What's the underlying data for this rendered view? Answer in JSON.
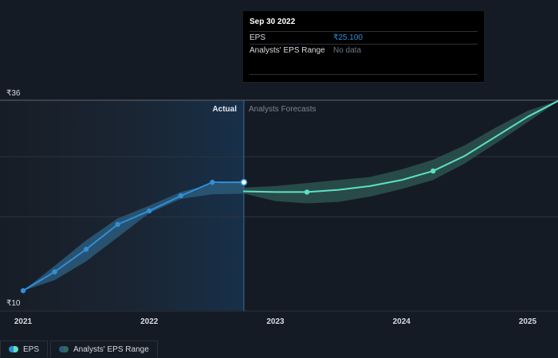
{
  "tooltip": {
    "date": "Sep 30 2022",
    "eps_label": "EPS",
    "eps_value": "₹25.100",
    "range_label": "Analysts' EPS Range",
    "range_value": "No data"
  },
  "legend": {
    "eps": "EPS",
    "range": "Analysts' EPS Range"
  },
  "colors": {
    "background": "#151b24",
    "actual_line": "#2f8fd8",
    "forecast_line": "#5ce1c6",
    "actual_band": "#2b5a7a",
    "forecast_band": "#2f5c55"
  },
  "chart_data": {
    "type": "line",
    "ylim": [
      10,
      36
    ],
    "xlim": [
      2021,
      2025.25
    ],
    "y_tick_labels": [
      {
        "value": 36,
        "label": "₹36"
      },
      {
        "value": 10,
        "label": "₹10"
      }
    ],
    "x_tick_labels": [
      {
        "value": 2021,
        "label": "2021"
      },
      {
        "value": 2022,
        "label": "2022"
      },
      {
        "value": 2023,
        "label": "2023"
      },
      {
        "value": 2024,
        "label": "2024"
      },
      {
        "value": 2025,
        "label": "2025"
      }
    ],
    "gridlines_y": [
      36,
      28.5,
      20.5
    ],
    "divider_x": 2022.75,
    "region_labels": {
      "actual": "Actual",
      "forecast": "Analysts Forecasts"
    },
    "series": [
      {
        "name": "EPS",
        "kind": "actual",
        "points": [
          {
            "x": 2021.0,
            "y": 10.7
          },
          {
            "x": 2021.25,
            "y": 13.2
          },
          {
            "x": 2021.5,
            "y": 16.2
          },
          {
            "x": 2021.75,
            "y": 19.5
          },
          {
            "x": 2022.0,
            "y": 21.3
          },
          {
            "x": 2022.25,
            "y": 23.3
          },
          {
            "x": 2022.5,
            "y": 25.1
          },
          {
            "x": 2022.75,
            "y": 25.1
          }
        ],
        "marker_indices": [
          0,
          1,
          2,
          3,
          4,
          5,
          6
        ],
        "highlight_index": 7
      },
      {
        "name": "EPS",
        "kind": "forecast",
        "points": [
          {
            "x": 2022.75,
            "y": 23.9
          },
          {
            "x": 2023.0,
            "y": 23.8
          },
          {
            "x": 2023.25,
            "y": 23.8
          },
          {
            "x": 2023.5,
            "y": 24.1
          },
          {
            "x": 2023.75,
            "y": 24.6
          },
          {
            "x": 2024.0,
            "y": 25.4
          },
          {
            "x": 2024.25,
            "y": 26.6
          },
          {
            "x": 2024.5,
            "y": 28.6
          },
          {
            "x": 2024.75,
            "y": 31.2
          },
          {
            "x": 2025.0,
            "y": 33.8
          },
          {
            "x": 2025.25,
            "y": 36.0
          }
        ],
        "marker_indices": [
          2,
          6
        ]
      }
    ],
    "ranges": [
      {
        "name": "Analysts' EPS Range",
        "kind": "actual",
        "x": [
          2021.0,
          2021.25,
          2021.5,
          2021.75,
          2022.0,
          2022.25,
          2022.5,
          2022.75
        ],
        "low": [
          10.7,
          12.1,
          14.6,
          17.8,
          21.0,
          22.9,
          23.5,
          23.6
        ],
        "high": [
          10.7,
          14.0,
          17.4,
          20.3,
          22.0,
          23.8,
          24.9,
          25.3
        ]
      },
      {
        "name": "Analysts' EPS Range",
        "kind": "forecast",
        "x": [
          2022.75,
          2023.0,
          2023.25,
          2023.5,
          2023.75,
          2024.0,
          2024.25,
          2024.5,
          2024.75,
          2025.0,
          2025.25
        ],
        "low": [
          23.6,
          22.6,
          22.3,
          22.5,
          23.2,
          24.2,
          25.4,
          27.6,
          30.3,
          33.1,
          36.0
        ],
        "high": [
          24.4,
          24.6,
          25.0,
          25.4,
          25.8,
          26.8,
          28.1,
          30.0,
          32.4,
          34.6,
          36.0
        ]
      }
    ]
  }
}
